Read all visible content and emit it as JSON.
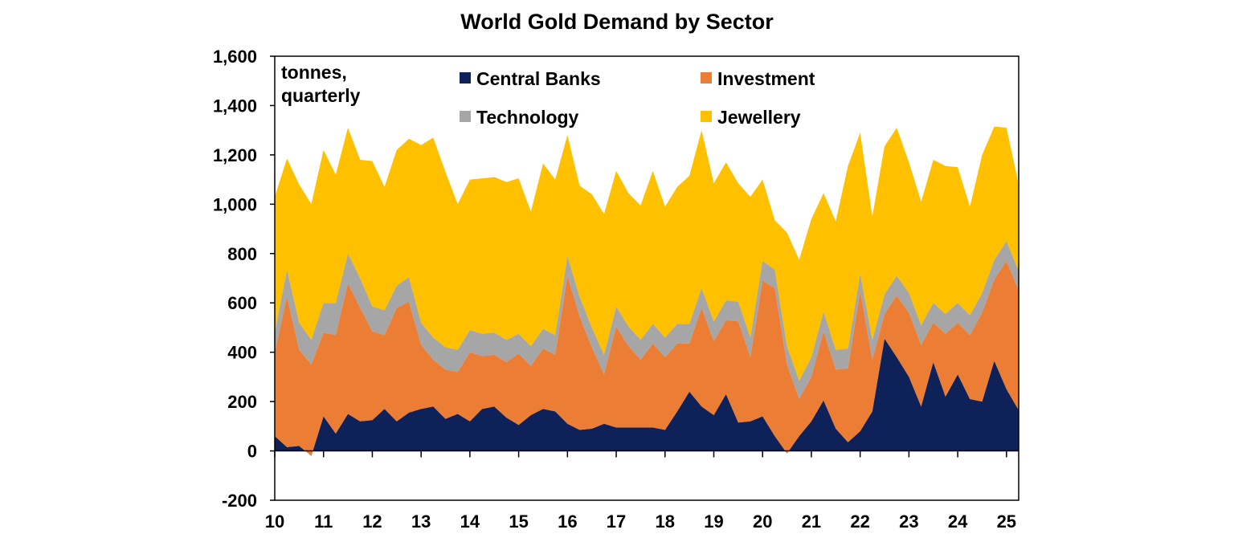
{
  "chart_data": {
    "type": "area",
    "stacked": true,
    "title": "World Gold Demand by Sector",
    "annotation": [
      "tonnes,",
      "quarterly"
    ],
    "ylim": [
      -200,
      1600
    ],
    "y_ticks": [
      -200,
      0,
      200,
      400,
      600,
      800,
      1000,
      1200,
      1400,
      1600
    ],
    "y_tick_labels": [
      "-200",
      "0",
      "200",
      "400",
      "600",
      "800",
      "1,000",
      "1,200",
      "1,400",
      "1,600"
    ],
    "x_tick_labels": [
      "10",
      "11",
      "12",
      "13",
      "14",
      "15",
      "16",
      "17",
      "18",
      "19",
      "20",
      "21",
      "22",
      "23",
      "24",
      "25"
    ],
    "legend": {
      "placement": "top-center",
      "entries": [
        {
          "label": "Central Banks",
          "color": "#0f2159"
        },
        {
          "label": "Investment",
          "color": "#ec7d35"
        },
        {
          "label": "Technology",
          "color": "#a6a6a6"
        },
        {
          "label": "Jewellery",
          "color": "#ffc000"
        }
      ]
    },
    "grid": false,
    "x": [
      2010.0,
      2010.25,
      2010.5,
      2010.75,
      2011.0,
      2011.25,
      2011.5,
      2011.75,
      2012.0,
      2012.25,
      2012.5,
      2012.75,
      2013.0,
      2013.25,
      2013.5,
      2013.75,
      2014.0,
      2014.25,
      2014.5,
      2014.75,
      2015.0,
      2015.25,
      2015.5,
      2015.75,
      2016.0,
      2016.25,
      2016.5,
      2016.75,
      2017.0,
      2017.25,
      2017.5,
      2017.75,
      2018.0,
      2018.25,
      2018.5,
      2018.75,
      2019.0,
      2019.25,
      2019.5,
      2019.75,
      2020.0,
      2020.25,
      2020.5,
      2020.75,
      2021.0,
      2021.25,
      2021.5,
      2021.75,
      2022.0,
      2022.25,
      2022.5,
      2022.75,
      2023.0,
      2023.25,
      2023.5,
      2023.75,
      2024.0,
      2024.25,
      2024.5,
      2024.75,
      2025.0,
      2025.25
    ],
    "series": [
      {
        "name": "Central Banks",
        "color": "#0f2159",
        "values": [
          60,
          15,
          20,
          -20,
          140,
          70,
          150,
          120,
          125,
          170,
          120,
          155,
          170,
          180,
          130,
          150,
          120,
          170,
          180,
          135,
          105,
          145,
          170,
          160,
          110,
          85,
          90,
          110,
          95,
          95,
          95,
          95,
          85,
          160,
          240,
          180,
          145,
          230,
          115,
          120,
          140,
          60,
          -10,
          60,
          120,
          205,
          90,
          35,
          80,
          160,
          455,
          380,
          300,
          180,
          360,
          220,
          310,
          210,
          200,
          365,
          250,
          165
        ]
      },
      {
        "name": "Investment",
        "color": "#ec7d35",
        "values": [
          340,
          610,
          390,
          370,
          340,
          400,
          530,
          460,
          360,
          300,
          460,
          450,
          260,
          190,
          200,
          170,
          280,
          215,
          210,
          225,
          290,
          200,
          245,
          230,
          600,
          460,
          330,
          200,
          410,
          330,
          275,
          340,
          295,
          275,
          195,
          400,
          300,
          300,
          410,
          260,
          550,
          600,
          360,
          150,
          180,
          280,
          240,
          300,
          570,
          210,
          100,
          250,
          260,
          250,
          160,
          255,
          210,
          260,
          360,
          330,
          520,
          485
        ]
      },
      {
        "name": "Technology",
        "color": "#a6a6a6",
        "values": [
          80,
          110,
          110,
          100,
          120,
          130,
          120,
          120,
          100,
          100,
          90,
          100,
          90,
          90,
          90,
          90,
          90,
          90,
          90,
          90,
          80,
          80,
          80,
          80,
          80,
          80,
          80,
          80,
          80,
          80,
          80,
          80,
          80,
          80,
          80,
          80,
          80,
          80,
          80,
          80,
          80,
          75,
          75,
          75,
          80,
          80,
          80,
          80,
          70,
          80,
          80,
          80,
          80,
          80,
          80,
          80,
          80,
          80,
          80,
          80,
          80,
          80
        ]
      },
      {
        "name": "Jewellery",
        "color": "#ffc000",
        "values": [
          550,
          450,
          560,
          550,
          620,
          520,
          510,
          480,
          590,
          500,
          550,
          560,
          720,
          810,
          710,
          590,
          610,
          630,
          630,
          640,
          630,
          545,
          670,
          630,
          490,
          450,
          540,
          570,
          550,
          540,
          545,
          620,
          530,
          555,
          600,
          640,
          560,
          560,
          480,
          570,
          330,
          200,
          460,
          490,
          560,
          480,
          520,
          740,
          570,
          500,
          600,
          600,
          530,
          500,
          580,
          600,
          550,
          440,
          560,
          540,
          460,
          350
        ]
      }
    ]
  }
}
